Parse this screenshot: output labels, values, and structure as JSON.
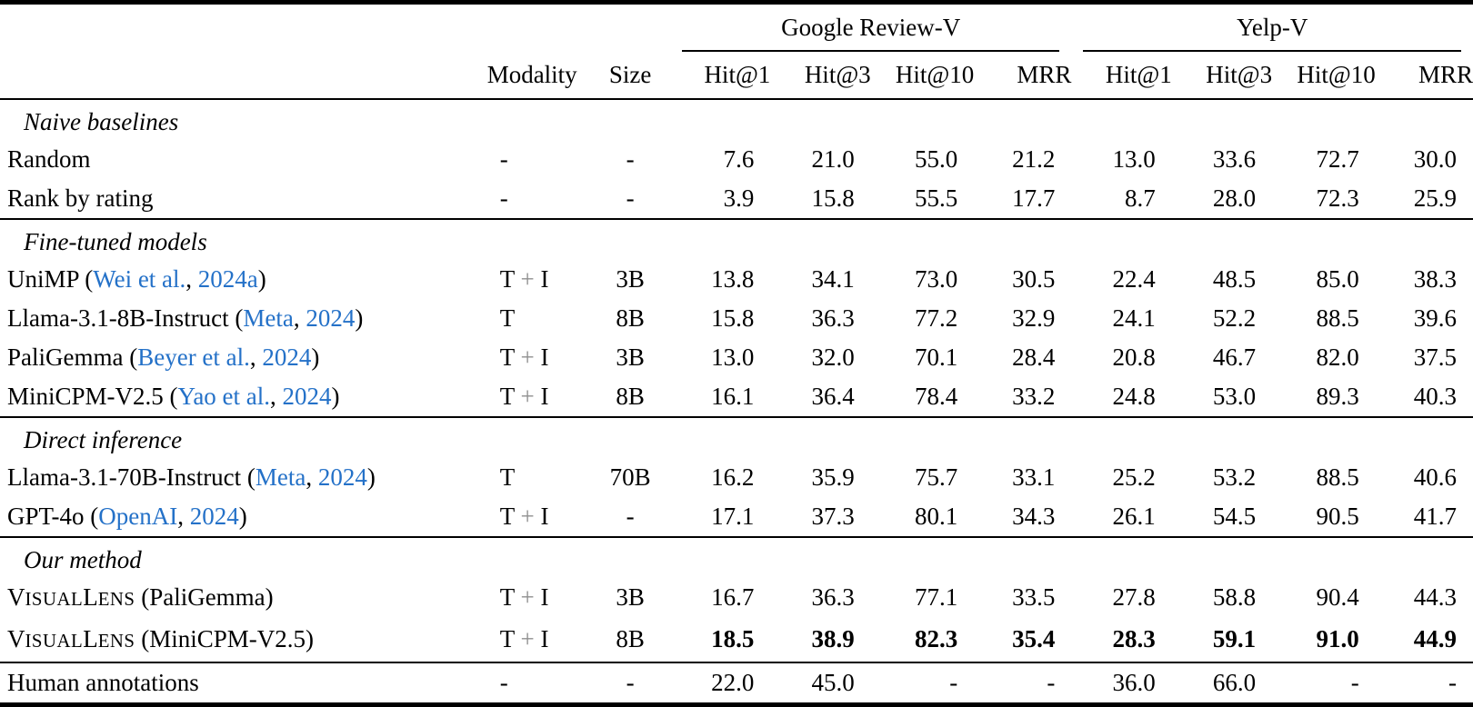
{
  "colors": {
    "background": "#ffffff",
    "text": "#000000",
    "citation_link": "#2471c8",
    "rule": "#000000"
  },
  "table": {
    "groups": [
      {
        "label": "Google Review-V",
        "span": 4
      },
      {
        "label": "Yelp-V",
        "span": 4
      }
    ],
    "columns": [
      "",
      "Modality",
      "Size",
      "Hit@1",
      "Hit@3",
      "Hit@10",
      "MRR",
      "Hit@1",
      "Hit@3",
      "Hit@10",
      "MRR"
    ],
    "sections": [
      {
        "label": "Naive baselines",
        "rule_above": false,
        "rows": [
          {
            "name": [
              {
                "text": "Random",
                "type": "text"
              }
            ],
            "modality": "-",
            "size": "-",
            "bold": false,
            "values": [
              "7.6",
              "21.0",
              "55.0",
              "21.2",
              "13.0",
              "33.6",
              "72.7",
              "30.0"
            ]
          },
          {
            "name": [
              {
                "text": "Rank by rating",
                "type": "text"
              }
            ],
            "modality": "-",
            "size": "-",
            "bold": false,
            "values": [
              "3.9",
              "15.8",
              "55.5",
              "17.7",
              "8.7",
              "28.0",
              "72.3",
              "25.9"
            ]
          }
        ]
      },
      {
        "label": "Fine-tuned models",
        "rule_above": true,
        "rows": [
          {
            "name": [
              {
                "text": "UniMP (",
                "type": "text"
              },
              {
                "text": "Wei et al.",
                "type": "link"
              },
              {
                "text": ", ",
                "type": "text"
              },
              {
                "text": "2024a",
                "type": "link"
              },
              {
                "text": ")",
                "type": "text"
              }
            ],
            "modality": "T + I",
            "size": "3B",
            "bold": false,
            "values": [
              "13.8",
              "34.1",
              "73.0",
              "30.5",
              "22.4",
              "48.5",
              "85.0",
              "38.3"
            ]
          },
          {
            "name": [
              {
                "text": "Llama-3.1-8B-Instruct (",
                "type": "text"
              },
              {
                "text": "Meta",
                "type": "link"
              },
              {
                "text": ", ",
                "type": "text"
              },
              {
                "text": "2024",
                "type": "link"
              },
              {
                "text": ")",
                "type": "text"
              }
            ],
            "modality": "T",
            "size": "8B",
            "bold": false,
            "values": [
              "15.8",
              "36.3",
              "77.2",
              "32.9",
              "24.1",
              "52.2",
              "88.5",
              "39.6"
            ]
          },
          {
            "name": [
              {
                "text": "PaliGemma (",
                "type": "text"
              },
              {
                "text": "Beyer et al.",
                "type": "link"
              },
              {
                "text": ", ",
                "type": "text"
              },
              {
                "text": "2024",
                "type": "link"
              },
              {
                "text": ")",
                "type": "text"
              }
            ],
            "modality": "T + I",
            "size": "3B",
            "bold": false,
            "values": [
              "13.0",
              "32.0",
              "70.1",
              "28.4",
              "20.8",
              "46.7",
              "82.0",
              "37.5"
            ]
          },
          {
            "name": [
              {
                "text": "MiniCPM-V2.5 (",
                "type": "text"
              },
              {
                "text": "Yao et al.",
                "type": "link"
              },
              {
                "text": ", ",
                "type": "text"
              },
              {
                "text": "2024",
                "type": "link"
              },
              {
                "text": ")",
                "type": "text"
              }
            ],
            "modality": "T + I",
            "size": "8B",
            "bold": false,
            "values": [
              "16.1",
              "36.4",
              "78.4",
              "33.2",
              "24.8",
              "53.0",
              "89.3",
              "40.3"
            ]
          }
        ]
      },
      {
        "label": "Direct inference",
        "rule_above": true,
        "rows": [
          {
            "name": [
              {
                "text": "Llama-3.1-70B-Instruct (",
                "type": "text"
              },
              {
                "text": "Meta",
                "type": "link"
              },
              {
                "text": ", ",
                "type": "text"
              },
              {
                "text": "2024",
                "type": "link"
              },
              {
                "text": ")",
                "type": "text"
              }
            ],
            "modality": "T",
            "size": "70B",
            "bold": false,
            "values": [
              "16.2",
              "35.9",
              "75.7",
              "33.1",
              "25.2",
              "53.2",
              "88.5",
              "40.6"
            ]
          },
          {
            "name": [
              {
                "text": "GPT-4o (",
                "type": "text"
              },
              {
                "text": "OpenAI",
                "type": "link"
              },
              {
                "text": ", ",
                "type": "text"
              },
              {
                "text": "2024",
                "type": "link"
              },
              {
                "text": ")",
                "type": "text"
              }
            ],
            "modality": "T + I",
            "size": "-",
            "bold": false,
            "values": [
              "17.1",
              "37.3",
              "80.1",
              "34.3",
              "26.1",
              "54.5",
              "90.5",
              "41.7"
            ]
          }
        ]
      },
      {
        "label": "Our method",
        "rule_above": true,
        "rows": [
          {
            "name": [
              {
                "text": "VisualLens",
                "type": "smallcaps"
              },
              {
                "text": " (PaliGemma)",
                "type": "text"
              }
            ],
            "modality": "T + I",
            "size": "3B",
            "bold": false,
            "values": [
              "16.7",
              "36.3",
              "77.1",
              "33.5",
              "27.8",
              "58.8",
              "90.4",
              "44.3"
            ]
          },
          {
            "name": [
              {
                "text": "VisualLens",
                "type": "smallcaps"
              },
              {
                "text": " (MiniCPM-V2.5)",
                "type": "text"
              }
            ],
            "modality": "T + I",
            "size": "8B",
            "bold": true,
            "values": [
              "18.5",
              "38.9",
              "82.3",
              "35.4",
              "28.3",
              "59.1",
              "91.0",
              "44.9"
            ]
          }
        ]
      },
      {
        "label": null,
        "rule_above": true,
        "rows": [
          {
            "name": [
              {
                "text": "Human annotations",
                "type": "text"
              }
            ],
            "modality": "-",
            "size": "-",
            "bold": false,
            "values": [
              "22.0",
              "45.0",
              "-",
              "-",
              "36.0",
              "66.0",
              "-",
              "-"
            ]
          }
        ]
      }
    ]
  }
}
